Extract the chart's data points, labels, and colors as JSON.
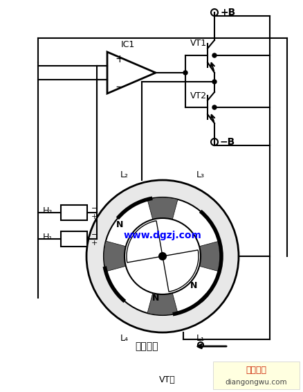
{
  "watermark": "www.dgzj.com",
  "watermark_color": "#0000FF",
  "bg_color": "#FFFFFF",
  "labels": {
    "IC1": "IC1",
    "VT1": "VT1",
    "VT2": "VT2",
    "plusB": "+B",
    "minusB": "−B",
    "L1": "L₁",
    "L2": "L₂",
    "L3": "L₃",
    "L4": "L₄",
    "H1": "H₁",
    "H2": "H₂",
    "rotate": "旋转方向",
    "site": "电工之屋",
    "site2": "diangongwu.com",
    "VT_bottom": "VT："
  },
  "figsize": [
    4.38,
    5.66
  ],
  "dpi": 100
}
